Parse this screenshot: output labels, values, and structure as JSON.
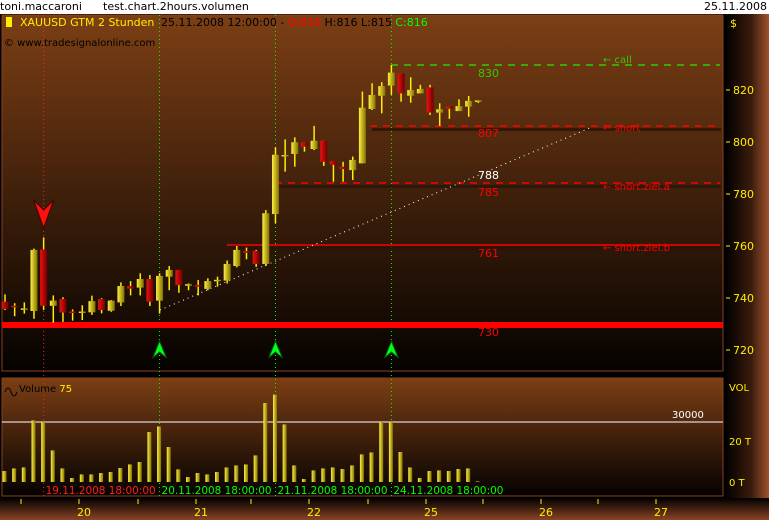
{
  "window": {
    "user": "toni.maccaroni",
    "chart_name": "test.chart.2hours.volumen",
    "date": "25.11.2008"
  },
  "header": {
    "symbol": "XAUUSD GTM 2 Stunden",
    "datetime": "25.11.2008 12:00:00 -",
    "open": "O:816",
    "hl": "H:816 L:815",
    "close": "C:816",
    "copyright": "© www.tradesignalonline.com",
    "currency": "$"
  },
  "colors": {
    "bull": "#e8e000",
    "bear": "#cc0000",
    "signal_buy": "#00ff00",
    "signal_sell": "#ff0000",
    "level": "#ff0000",
    "call": "#33cc00"
  },
  "price_axis": {
    "ticks": [
      "820",
      "800",
      "780",
      "760",
      "740",
      "720"
    ]
  },
  "levels": [
    {
      "label": "← call",
      "value_label": "830",
      "style": "dashed",
      "color": "#33cc00"
    },
    {
      "label": "← short",
      "value_label": "807",
      "style": "dashed",
      "color": "#ff0000"
    },
    {
      "label": "← short.ziel.a",
      "value_label": "785",
      "extra_label": "788",
      "style": "dashed",
      "color": "#ff0000"
    },
    {
      "label": "← short.ziel.b",
      "value_label": "761",
      "style": "solid",
      "color": "#ff0000"
    },
    {
      "label": "",
      "value_label": "730",
      "style": "thick",
      "color": "#ff0000"
    }
  ],
  "candles": [
    [
      738.6,
      741.4,
      735.4,
      735.8
    ],
    [
      737,
      738,
      733,
      736.5
    ],
    [
      736,
      738.3,
      734,
      736
    ],
    [
      735,
      759,
      732,
      758.5
    ],
    [
      758.7,
      763.3,
      735.4,
      737
    ],
    [
      737,
      741,
      730.5,
      739
    ],
    [
      739.6,
      740.3,
      730.8,
      734.4
    ],
    [
      734.8,
      735.6,
      731.3,
      734.4
    ],
    [
      734.6,
      737.2,
      731.5,
      734.8
    ],
    [
      734.5,
      740.9,
      733.5,
      738.8
    ],
    [
      739.6,
      739.9,
      734.1,
      735.4
    ],
    [
      735.1,
      739.2,
      734.7,
      739
    ],
    [
      738.3,
      746,
      736.9,
      744.6
    ],
    [
      744.6,
      746.5,
      741,
      743.6
    ],
    [
      744,
      749.5,
      741,
      747.3
    ],
    [
      747.3,
      748.8,
      736.9,
      738.6
    ],
    [
      739,
      749.5,
      734,
      748.5
    ],
    [
      748.2,
      752.3,
      743,
      750.8
    ],
    [
      750.8,
      750.8,
      742,
      745
    ],
    [
      745.3,
      745.6,
      743,
      745.3
    ],
    [
      745,
      746.9,
      741,
      744.4
    ],
    [
      743.5,
      747.6,
      743,
      746.5
    ],
    [
      746.9,
      748.2,
      744.4,
      747
    ],
    [
      746.7,
      754.4,
      745.6,
      753.1
    ],
    [
      752.3,
      760,
      751.8,
      758.5
    ],
    [
      758.1,
      759.4,
      754.9,
      757.4
    ],
    [
      758.1,
      758.5,
      752,
      753.1
    ],
    [
      753.1,
      773.8,
      752.3,
      772.6
    ],
    [
      772.3,
      798,
      768.7,
      795.1
    ],
    [
      795,
      801,
      788.6,
      795
    ],
    [
      795.4,
      801.8,
      790.5,
      799.9
    ],
    [
      799.9,
      799.9,
      796.3,
      798.2
    ],
    [
      797.3,
      806.2,
      796.9,
      800.5
    ],
    [
      800.5,
      800.5,
      790.8,
      792.4
    ],
    [
      792.7,
      792.7,
      784.7,
      791.2
    ],
    [
      790.5,
      792.4,
      784.7,
      789.6
    ],
    [
      789.2,
      794.4,
      785.4,
      793.1
    ],
    [
      791.8,
      819.4,
      791.8,
      813.2
    ],
    [
      812.7,
      822.6,
      812.3,
      818.1
    ],
    [
      817.8,
      823,
      811,
      821.5
    ],
    [
      821.7,
      829.6,
      818.1,
      826.7
    ],
    [
      826.4,
      826.4,
      815.5,
      818.7
    ],
    [
      817.8,
      824.9,
      815.1,
      820
    ],
    [
      818.7,
      822,
      819,
      820.4
    ],
    [
      821,
      822,
      810.4,
      811.3
    ],
    [
      811.3,
      814.9,
      806.2,
      812.6
    ],
    [
      813.8,
      813.8,
      808.9,
      812.8
    ],
    [
      811.9,
      816.4,
      811.9,
      813.8
    ],
    [
      813.6,
      817.7,
      809.7,
      815.8
    ],
    [
      816,
      816,
      815,
      816
    ]
  ],
  "volumes": [
    5500,
    6800,
    7300,
    30800,
    30000,
    15800,
    6800,
    2000,
    3800,
    3800,
    4500,
    5000,
    7000,
    8800,
    10000,
    25000,
    27800,
    17500,
    6300,
    2500,
    4500,
    3800,
    5000,
    7300,
    8300,
    8800,
    13300,
    39500,
    43700,
    28800,
    8300,
    1500,
    5800,
    6800,
    7300,
    6500,
    8300,
    13800,
    14800,
    30000,
    30000,
    15000,
    7300,
    2000,
    5500,
    5800,
    5500,
    6500,
    6800,
    300
  ],
  "signals": [
    {
      "type": "sell",
      "bar": 4
    },
    {
      "type": "buy",
      "bar": 16
    },
    {
      "type": "buy",
      "bar": 28
    },
    {
      "type": "buy",
      "bar": 40
    }
  ],
  "volume_panel": {
    "title": "Volume",
    "period": "75",
    "axis_label": "VOL",
    "ticks": [
      "20 T",
      "0 T"
    ],
    "threshold_label": "30000",
    "threshold": 30000
  },
  "time_markers": [
    "19.11.2008 18:00:00",
    "20.11.2008 18:00:00",
    "21.11.2008 18:00:00",
    "24.11.2008 18:00:00"
  ],
  "x_axis": {
    "labels": [
      "20",
      "21",
      "22",
      "25",
      "26",
      "27"
    ]
  }
}
